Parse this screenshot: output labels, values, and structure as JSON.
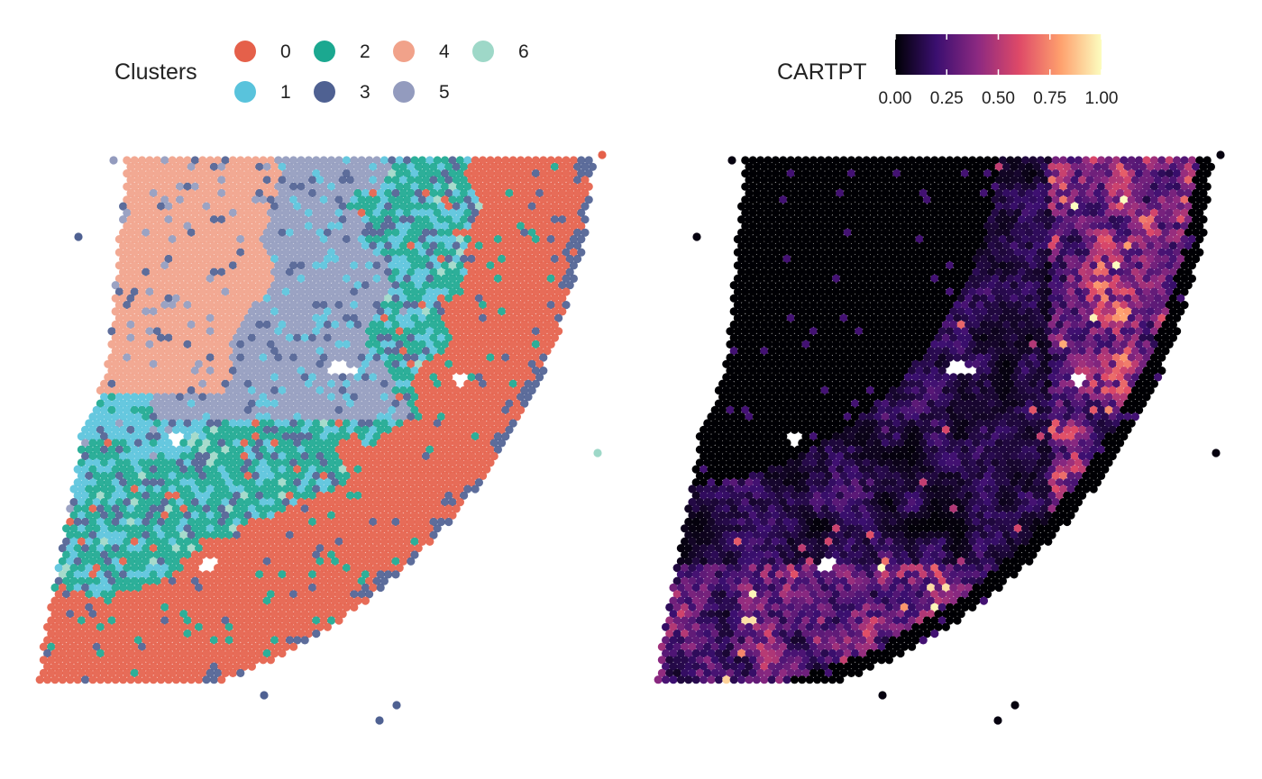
{
  "chart_data": [
    {
      "type": "scatter",
      "panel": "left",
      "legend": {
        "title": "Clusters",
        "placement": "top",
        "entries": [
          {
            "label": "0",
            "color": "#E5604A"
          },
          {
            "label": "1",
            "color": "#59C3DC"
          },
          {
            "label": "2",
            "color": "#1BA890"
          },
          {
            "label": "3",
            "color": "#4F6192"
          },
          {
            "label": "4",
            "color": "#F1A28A"
          },
          {
            "label": "5",
            "color": "#939BBE"
          },
          {
            "label": "6",
            "color": "#9ED8C8"
          }
        ]
      },
      "grid": false,
      "axes_visible": false,
      "encoding": "spatial spots colored by cluster label"
    },
    {
      "type": "scatter",
      "panel": "right",
      "legend": {
        "title": "CARTPT",
        "placement": "top",
        "colorbar": true,
        "ticks": [
          "0.00",
          "0.25",
          "0.50",
          "0.75",
          "1.00"
        ],
        "range": [
          0,
          1
        ],
        "colormap": "magma",
        "stops": [
          "#000004",
          "#3B0F70",
          "#8C2981",
          "#DE4968",
          "#FE9F6D",
          "#FCFDBF"
        ]
      },
      "grid": false,
      "axes_visible": false,
      "encoding": "spatial spots colored by expression (0-1)"
    }
  ]
}
